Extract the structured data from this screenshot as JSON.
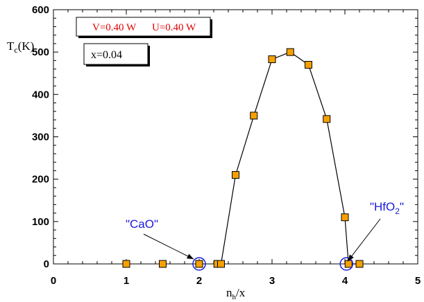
{
  "chart_data": {
    "type": "scatter",
    "xlabel": "n",
    "xlabel_sub": "h",
    "xlabel_rest": "/x",
    "ylabel": "T",
    "ylabel_sub": "c",
    "ylabel_rest": "(K)",
    "xlim": [
      0,
      5
    ],
    "ylim": [
      0,
      600
    ],
    "x_ticks": [
      "0",
      "1",
      "2",
      "3",
      "4",
      "5"
    ],
    "y_ticks": [
      "0",
      "100",
      "200",
      "300",
      "400",
      "500",
      "600"
    ],
    "grid": false,
    "series": [
      {
        "marker": "square",
        "color": "#f5a000",
        "points": [
          {
            "x": 1.0,
            "y": 0
          },
          {
            "x": 1.5,
            "y": 0
          },
          {
            "x": 2.0,
            "y": 0
          },
          {
            "x": 2.25,
            "y": 0
          },
          {
            "x": 2.3,
            "y": 0
          },
          {
            "x": 2.5,
            "y": 210
          },
          {
            "x": 2.75,
            "y": 350
          },
          {
            "x": 3.0,
            "y": 483
          },
          {
            "x": 3.25,
            "y": 500
          },
          {
            "x": 3.5,
            "y": 470
          },
          {
            "x": 3.75,
            "y": 342
          },
          {
            "x": 4.0,
            "y": 110
          },
          {
            "x": 4.05,
            "y": 0
          },
          {
            "x": 4.2,
            "y": 0
          }
        ],
        "line_from_index": 4
      }
    ],
    "legend_box_1": {
      "text_v": "V=0.40 W",
      "text_u": "U=0.40 W"
    },
    "legend_box_2": {
      "text": "x=0.04"
    },
    "annotations": [
      {
        "label": "\"CaO\"",
        "x": 2.0,
        "y": 0
      },
      {
        "label_main": "\"HfO",
        "label_sub": "2",
        "label_end": "\"",
        "x": 4.05,
        "y": 0
      }
    ],
    "colors": {
      "marker_fill": "#f5a000",
      "annotation": "#1a1adb",
      "legend_text": "#e00000"
    }
  }
}
